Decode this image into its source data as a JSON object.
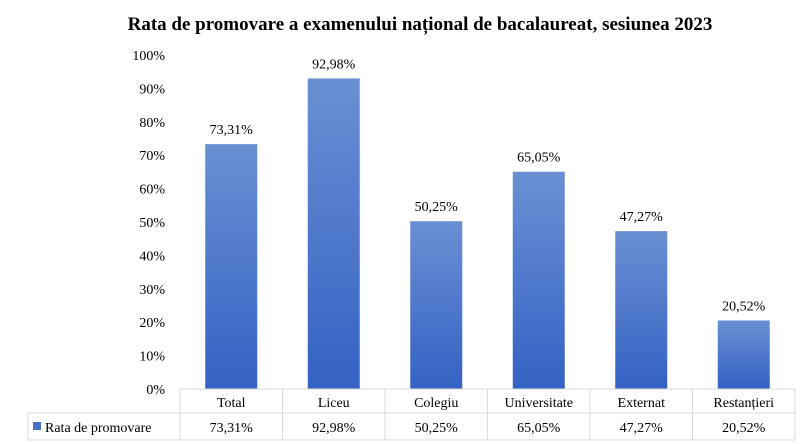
{
  "chart_data": {
    "type": "bar",
    "title": "Rata de promovare a examenului național de bacalaureat, sesiunea 2023",
    "categories": [
      "Total",
      "Liceu",
      "Colegiu",
      "Universitate",
      "Externat",
      "Restanțieri"
    ],
    "series": [
      {
        "name": "Rata de promovare",
        "values": [
          73.31,
          92.98,
          50.25,
          65.05,
          47.27,
          20.52
        ],
        "labels": [
          "73,31%",
          "92,98%",
          "50,25%",
          "65,05%",
          "47,27%",
          "20,52%"
        ]
      }
    ],
    "yticks": [
      "0%",
      "10%",
      "20%",
      "30%",
      "40%",
      "50%",
      "60%",
      "70%",
      "80%",
      "90%",
      "100%"
    ],
    "ylim": [
      0,
      100
    ],
    "grid": false,
    "legend": "data-table-left",
    "colors": {
      "bar_top": "#6a8fd3",
      "bar_bottom": "#3462c4",
      "legend_key": "#4472c4"
    }
  }
}
